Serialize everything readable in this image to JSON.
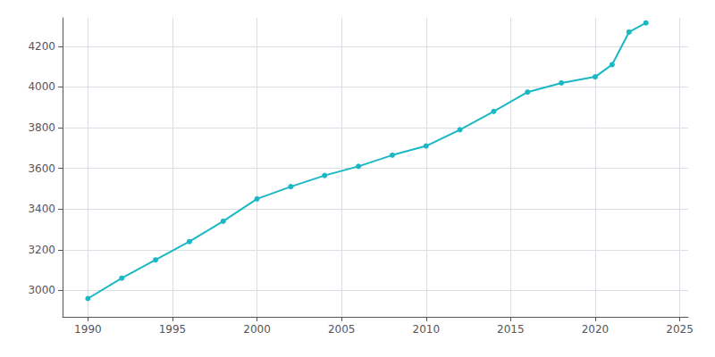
{
  "chart_data": {
    "type": "line",
    "x": [
      1990,
      1992,
      1994,
      1996,
      1998,
      2000,
      2002,
      2004,
      2006,
      2008,
      2010,
      2012,
      2014,
      2016,
      2018,
      2020,
      2021,
      2022,
      2023
    ],
    "values": [
      2960,
      3060,
      3150,
      3240,
      3340,
      3450,
      3510,
      3565,
      3610,
      3665,
      3710,
      3790,
      3880,
      3975,
      4020,
      4050,
      4110,
      4270,
      4315
    ],
    "color": "#1ab8c4",
    "marker": "circle",
    "xlim": [
      1988.5,
      2025.5
    ],
    "xticks": [
      1990,
      1995,
      2000,
      2005,
      2010,
      2015,
      2020,
      2025
    ],
    "ylim": [
      2870,
      4340
    ],
    "yticks": [
      3000,
      3200,
      3400,
      3600,
      3800,
      4000,
      4200
    ],
    "grid": true
  }
}
